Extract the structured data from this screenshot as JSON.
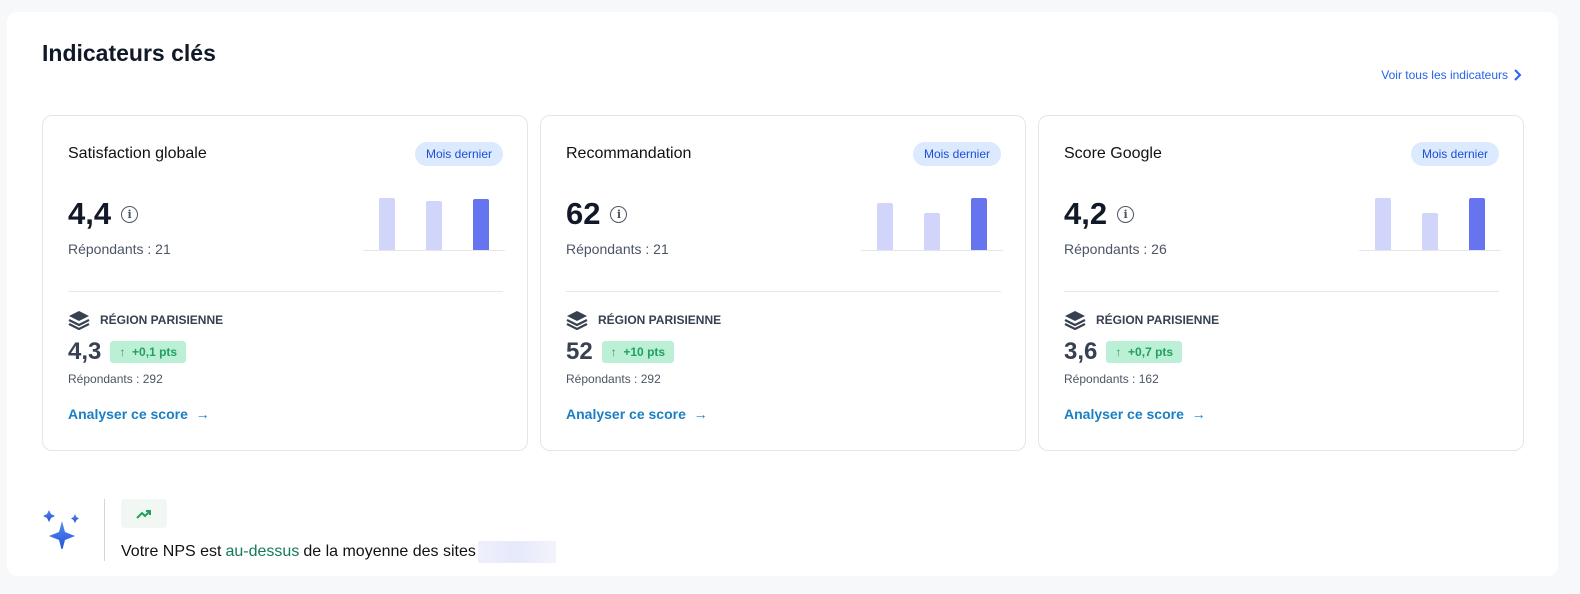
{
  "header": {
    "title": "Indicateurs clés",
    "see_all": "Voir tous les indicateurs"
  },
  "colors": {
    "accent": "#2563eb",
    "link": "#1a7fc4",
    "bar_current": "#6674f0",
    "bar_past": "#d2d5fa",
    "positive": "#22a060"
  },
  "cards": [
    {
      "title": "Satisfaction globale",
      "period": "Mois dernier",
      "value": "4,4",
      "respondents": "Répondants : 21",
      "bars": [
        47,
        45,
        46
      ],
      "region": "RÉGION PARISIENNE",
      "region_value": "4,3",
      "delta": "+0,1 pts",
      "region_respondents": "Répondants : 292",
      "link": "Analyser ce score"
    },
    {
      "title": "Recommandation",
      "period": "Mois dernier",
      "value": "62",
      "respondents": "Répondants : 21",
      "bars": [
        43,
        34,
        47
      ],
      "region": "RÉGION PARISIENNE",
      "region_value": "52",
      "delta": "+10 pts",
      "region_respondents": "Répondants : 292",
      "link": "Analyser ce score"
    },
    {
      "title": "Score Google",
      "period": "Mois dernier",
      "value": "4,2",
      "respondents": "Répondants : 26",
      "bars": [
        47,
        34,
        47
      ],
      "region": "RÉGION PARISIENNE",
      "region_value": "3,6",
      "delta": "+0,7 pts",
      "region_respondents": "Répondants : 162",
      "link": "Analyser ce score"
    }
  ],
  "insight": {
    "before": "Votre NPS est",
    "highlight": "au-dessus",
    "after": "de la moyenne des sites",
    "icon": "trending-up-icon"
  }
}
